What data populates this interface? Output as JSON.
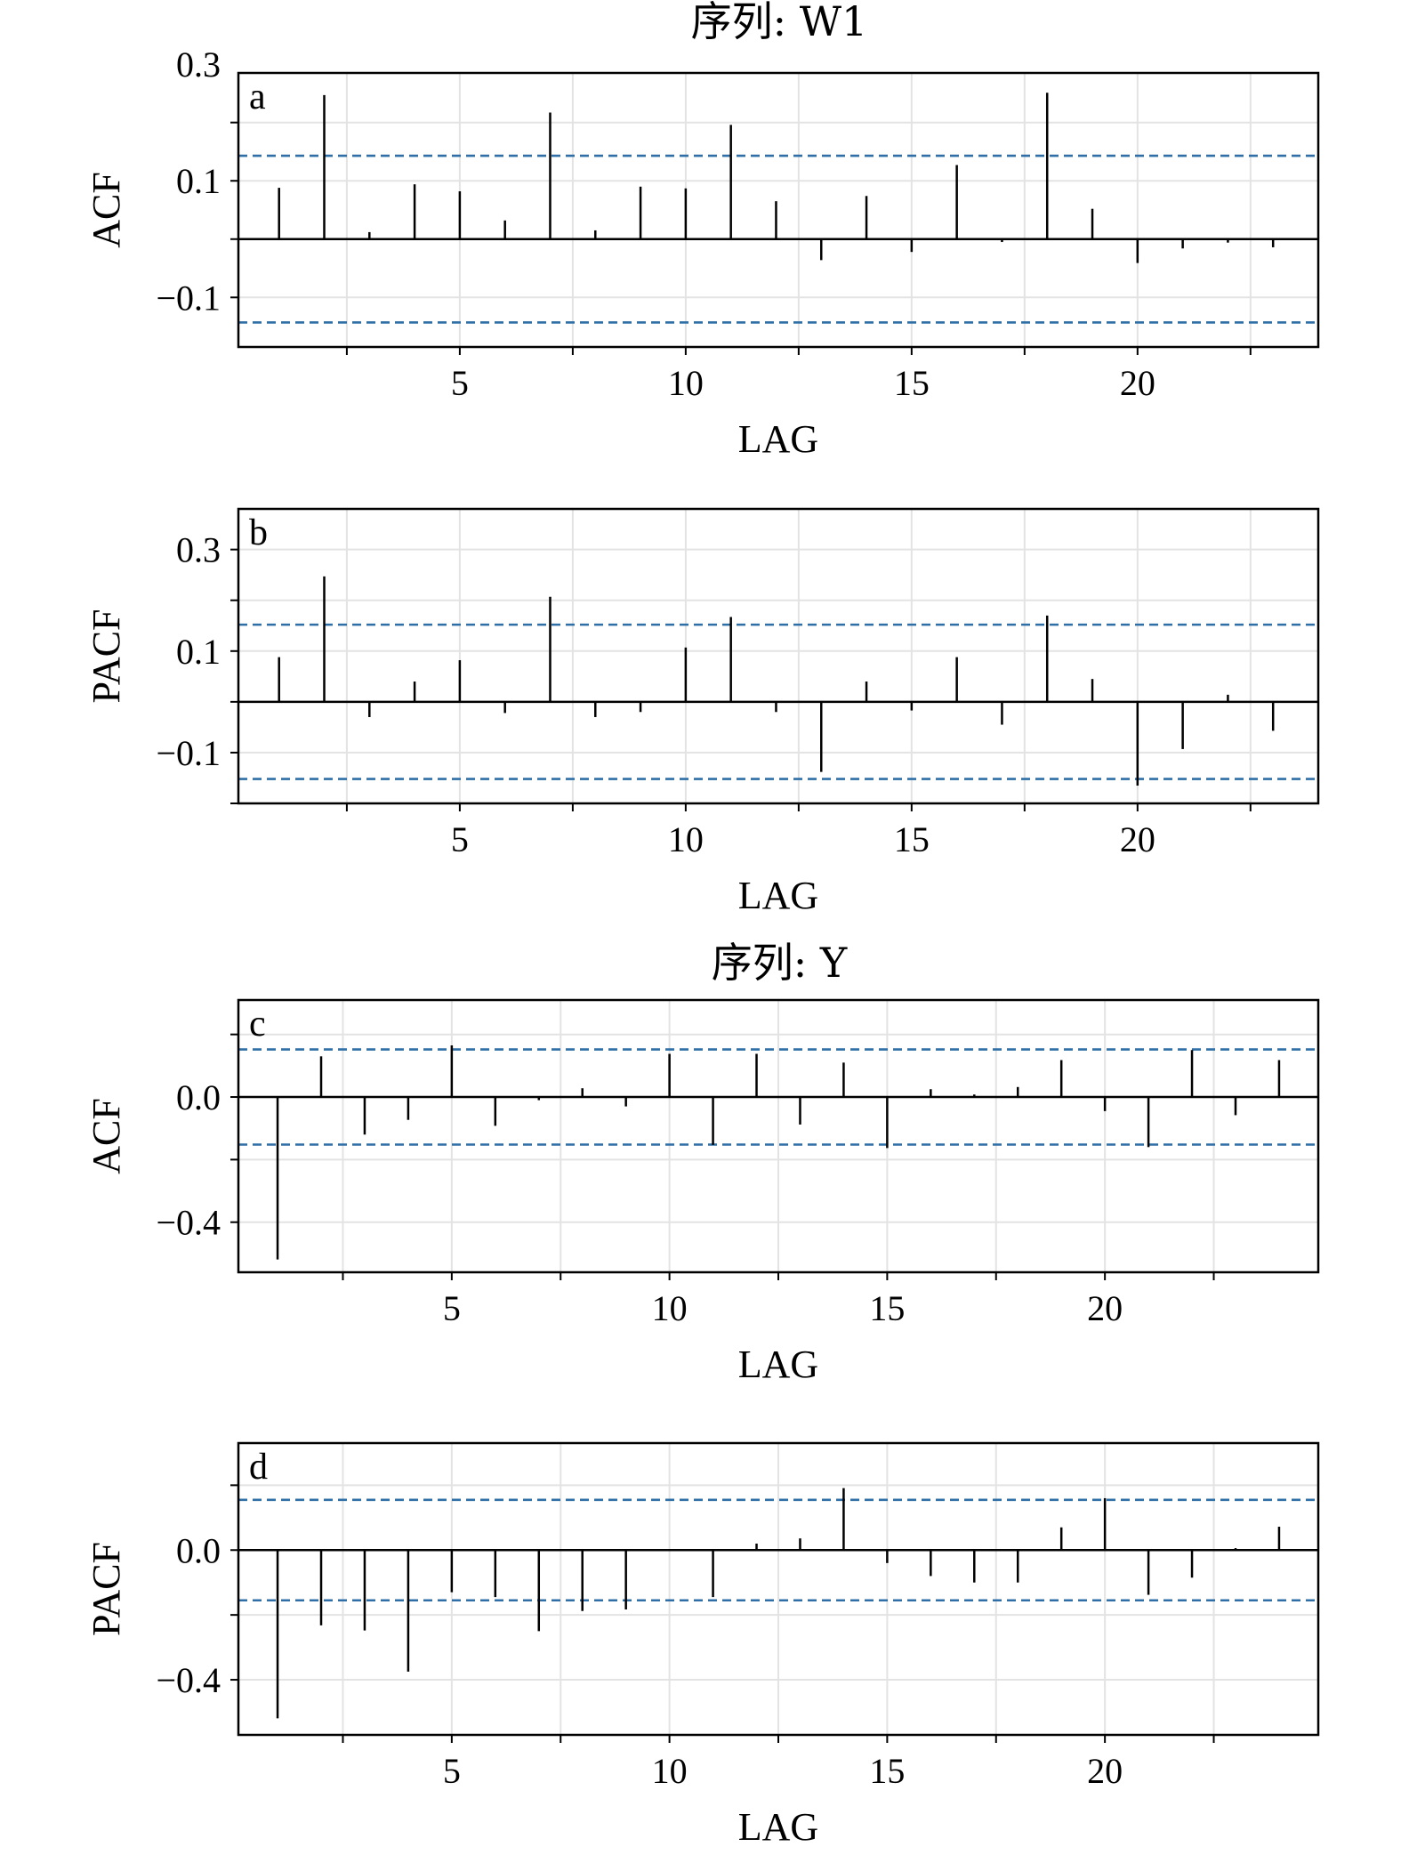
{
  "titles": {
    "w1": "序列: W1",
    "y": "序列:  Y"
  },
  "colors": {
    "ci": "#2f6fa6",
    "bar": "#000000",
    "grid": "#e3e3e3"
  },
  "chart_data": [
    {
      "type": "bar",
      "panel_label": "a",
      "title": "序列: W1",
      "xlabel": "LAG",
      "ylabel": "ACF",
      "xlim": [
        0.1,
        24.0
      ],
      "ylim": [
        -0.185,
        0.285
      ],
      "yticks": [
        0.3,
        0.1,
        -0.1
      ],
      "ytick_labels": [
        "0.3",
        "0.1",
        "−0.1"
      ],
      "xticks": [
        5,
        10,
        15,
        20
      ],
      "ci": 0.143,
      "lags": [
        1,
        2,
        3,
        4,
        5,
        6,
        7,
        8,
        9,
        10,
        11,
        12,
        13,
        14,
        15,
        16,
        17,
        18,
        19,
        20,
        21,
        22,
        23
      ],
      "values": [
        0.088,
        0.247,
        0.012,
        0.094,
        0.082,
        0.032,
        0.217,
        0.015,
        0.09,
        0.087,
        0.196,
        0.065,
        -0.036,
        0.074,
        -0.022,
        0.127,
        -0.005,
        0.251,
        0.052,
        -0.041,
        -0.016,
        -0.006,
        -0.014
      ]
    },
    {
      "type": "bar",
      "panel_label": "b",
      "xlabel": "LAG",
      "ylabel": "PACF",
      "xlim": [
        0.1,
        24.0
      ],
      "ylim": [
        -0.2,
        0.38
      ],
      "yticks": [
        0.3,
        0.1,
        -0.1
      ],
      "ytick_labels": [
        "0.3",
        "0.1",
        "−0.1"
      ],
      "xticks": [
        5,
        10,
        15,
        20
      ],
      "ci": 0.152,
      "lags": [
        1,
        2,
        3,
        4,
        5,
        6,
        7,
        8,
        9,
        10,
        11,
        12,
        13,
        14,
        15,
        16,
        17,
        18,
        19,
        20,
        21,
        22,
        23
      ],
      "values": [
        0.088,
        0.247,
        -0.03,
        0.04,
        0.082,
        -0.022,
        0.207,
        -0.03,
        -0.02,
        0.107,
        0.167,
        -0.02,
        -0.138,
        0.04,
        -0.017,
        0.088,
        -0.045,
        0.17,
        0.045,
        -0.165,
        -0.093,
        0.014,
        -0.057
      ]
    },
    {
      "type": "bar",
      "panel_label": "c",
      "title": "序列:  Y",
      "xlabel": "LAG",
      "ylabel": "ACF",
      "xlim": [
        0.1,
        24.9
      ],
      "ylim": [
        -0.56,
        0.31
      ],
      "yticks": [
        0.0,
        -0.4
      ],
      "ytick_labels": [
        "0.0",
        "−0.4"
      ],
      "xticks": [
        5,
        10,
        15,
        20
      ],
      "ci": 0.152,
      "lags": [
        1,
        2,
        3,
        4,
        5,
        6,
        7,
        8,
        9,
        10,
        11,
        12,
        13,
        14,
        15,
        16,
        17,
        18,
        19,
        20,
        21,
        22,
        23,
        24
      ],
      "values": [
        -0.519,
        0.13,
        -0.12,
        -0.073,
        0.165,
        -0.092,
        -0.01,
        0.028,
        -0.03,
        0.138,
        -0.153,
        0.138,
        -0.088,
        0.11,
        -0.163,
        0.025,
        0.008,
        0.032,
        0.118,
        -0.045,
        -0.16,
        0.15,
        -0.058,
        0.118
      ]
    },
    {
      "type": "bar",
      "panel_label": "d",
      "xlabel": "LAG",
      "ylabel": "PACF",
      "xlim": [
        0.1,
        24.9
      ],
      "ylim": [
        -0.57,
        0.33
      ],
      "yticks": [
        0.0,
        -0.4
      ],
      "ytick_labels": [
        "0.0",
        "−0.4"
      ],
      "xticks": [
        5,
        10,
        15,
        20
      ],
      "ci": 0.155,
      "lags": [
        1,
        2,
        3,
        4,
        5,
        6,
        7,
        8,
        9,
        10,
        11,
        12,
        13,
        14,
        15,
        16,
        17,
        18,
        19,
        20,
        21,
        22,
        23,
        24
      ],
      "values": [
        -0.519,
        -0.232,
        -0.248,
        -0.375,
        -0.13,
        -0.145,
        -0.25,
        -0.188,
        -0.183,
        0.0,
        -0.145,
        0.02,
        0.036,
        0.191,
        -0.04,
        -0.08,
        -0.1,
        -0.1,
        0.07,
        0.16,
        -0.138,
        -0.085,
        0.006,
        0.072
      ]
    }
  ]
}
